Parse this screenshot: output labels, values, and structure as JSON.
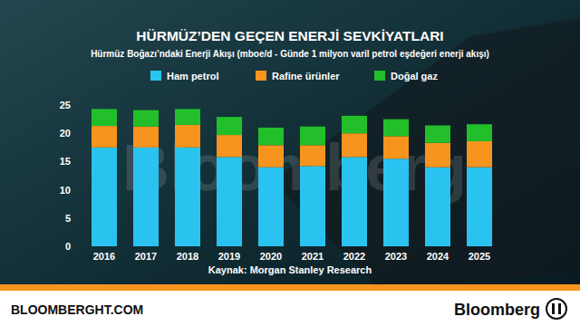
{
  "chart_data": {
    "type": "bar",
    "stacked": true,
    "title": "HÜRMÜZ’DEN GEÇEN ENERJİ SEVKİYATLARI",
    "subtitle": "Hürmüz Boğazı’ndaki Enerji Akışı (mboe/d - Günde 1 milyon varil petrol eşdeğeri enerji akışı)",
    "source": "Kaynak: Morgan Stanley Research",
    "watermark": "Bloomberg",
    "footer": {
      "website": "BLOOMBERGHT.COM",
      "brand": "Bloomberg"
    },
    "categories": [
      "2016",
      "2017",
      "2018",
      "2019",
      "2020",
      "2021",
      "2022",
      "2023",
      "2024",
      "2025"
    ],
    "series": [
      {
        "name": "Ham petrol",
        "color": "#2ac3f0",
        "values": [
          17.5,
          17.5,
          17.5,
          15.8,
          14.0,
          14.2,
          15.8,
          15.5,
          14.0,
          14.0
        ]
      },
      {
        "name": "Rafine ürünler",
        "color": "#f7941d",
        "values": [
          3.8,
          3.7,
          4.0,
          3.9,
          3.9,
          3.7,
          4.2,
          4.0,
          4.3,
          4.6
        ]
      },
      {
        "name": "Doğal gaz",
        "color": "#22bf2b",
        "values": [
          3.0,
          2.9,
          2.8,
          3.2,
          3.1,
          3.3,
          3.1,
          3.0,
          3.1,
          3.0
        ]
      }
    ],
    "ylim": [
      0,
      25
    ],
    "yticks": [
      0,
      5,
      10,
      15,
      20,
      25
    ],
    "grid": false,
    "legend": "top",
    "tick_labels": true
  }
}
